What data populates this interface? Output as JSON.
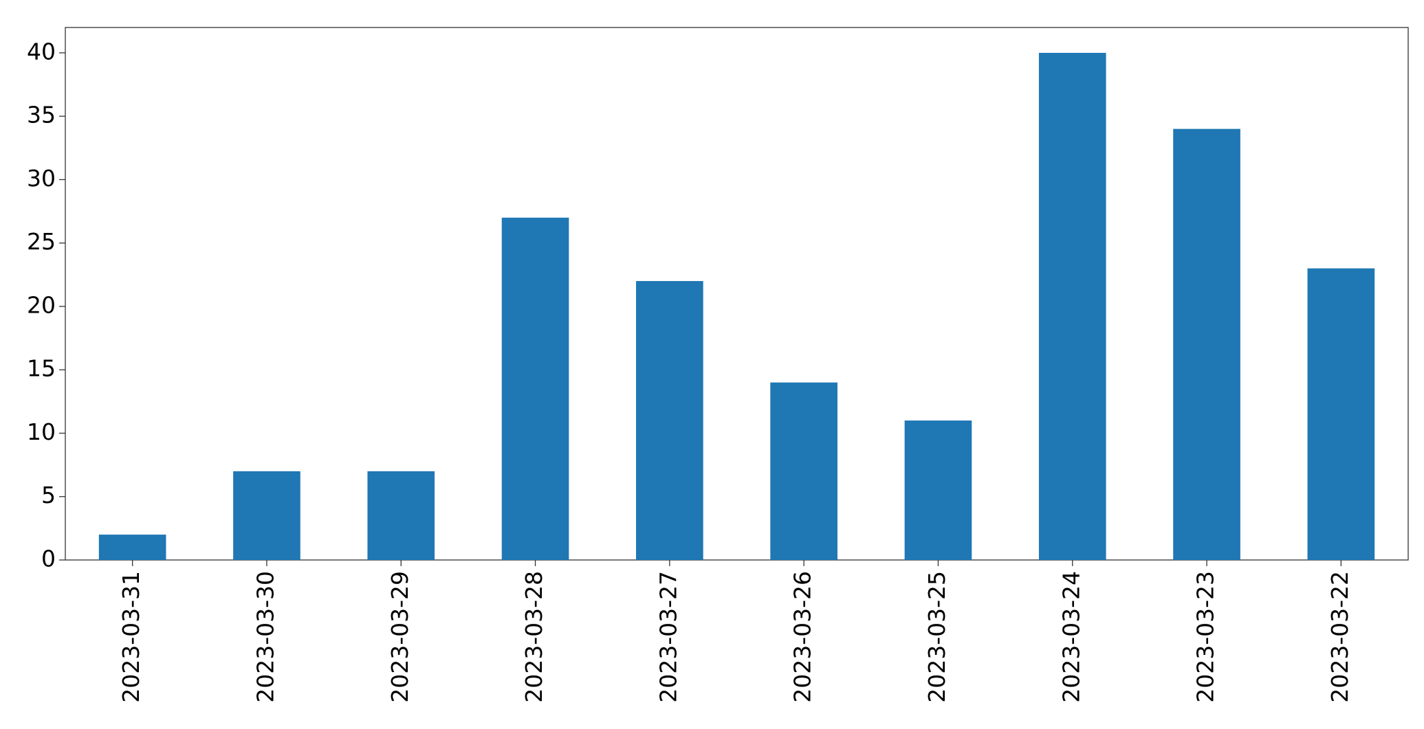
{
  "chart_data": {
    "type": "bar",
    "categories": [
      "2023-03-31",
      "2023-03-30",
      "2023-03-29",
      "2023-03-28",
      "2023-03-27",
      "2023-03-26",
      "2023-03-25",
      "2023-03-24",
      "2023-03-23",
      "2023-03-22"
    ],
    "values": [
      2,
      7,
      7,
      27,
      22,
      14,
      11,
      40,
      34,
      23
    ],
    "color": "#1f77b4",
    "ylim": [
      0,
      42
    ],
    "yticks": [
      0,
      5,
      10,
      15,
      20,
      25,
      30,
      35,
      40
    ],
    "grid": false
  }
}
